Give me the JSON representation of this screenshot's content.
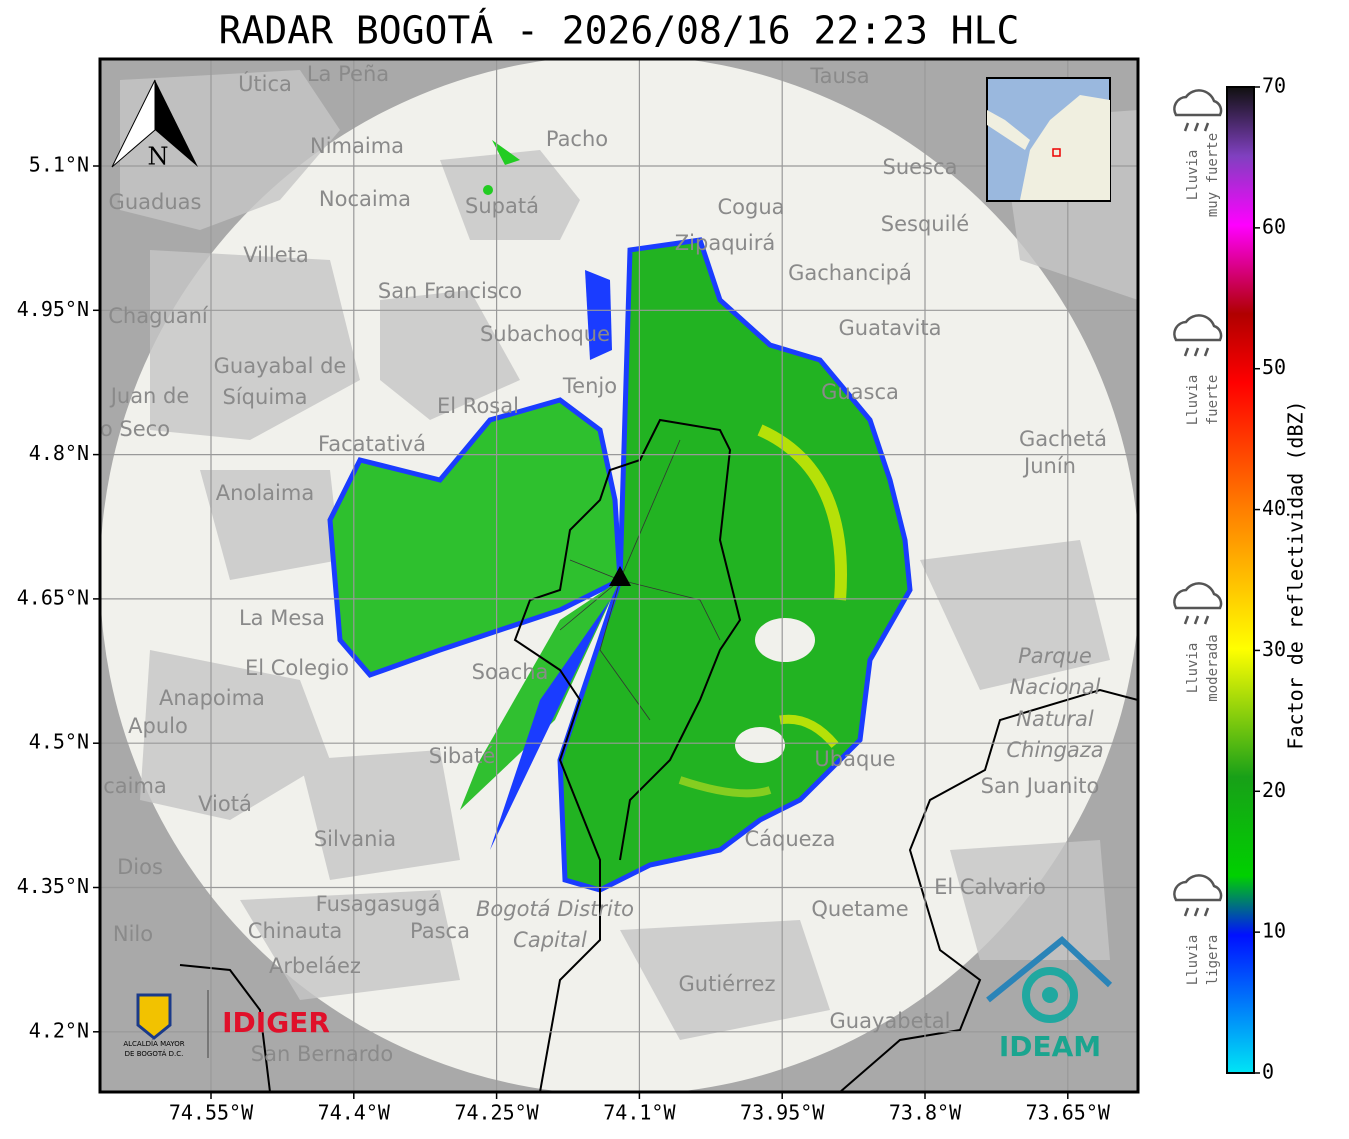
{
  "title": "RADAR BOGOTÁ - 2026/08/16 22:23 HLC",
  "map": {
    "lat_labels": [
      "5.1°N",
      "4.95°N",
      "4.8°N",
      "4.65°N",
      "4.5°N",
      "4.35°N",
      "4.2°N"
    ],
    "lon_labels": [
      "74.55°W",
      "74.4°W",
      "74.25°W",
      "74.1°W",
      "73.95°W",
      "73.8°W",
      "73.65°W"
    ],
    "north": "N",
    "places": [
      "La Peña",
      "Útica",
      "Tausa",
      "Pacho",
      "Nimaima",
      "Supatá",
      "Nocaima",
      "Guaduas",
      "Cogua",
      "Suesca",
      "Sesquilé",
      "Zipaquirá",
      "Villeta",
      "Gachancipá",
      "San Francisco",
      "Chaguaní",
      "Guatavita",
      "Subachoque",
      "Guayabal de",
      "Síquima",
      "Tenjo",
      "Guasca",
      "Juan de",
      "o Seco",
      "El Rosal",
      "Facatativá",
      "Gachetá",
      "Junín",
      "Anolaima",
      "La Mesa",
      "El Colegio",
      "Soacha",
      "Parque",
      "Nacional",
      "Natural",
      "Chingaza",
      "Anapoima",
      "Apulo",
      "Sibaté",
      "Ubaque",
      "San Juanito",
      "caima",
      "Viotá",
      "Silvania",
      "Cáqueza",
      "Dios",
      "El Calvario",
      "Fusagasugá",
      "Bogotá Distrito",
      "Capital",
      "Quetame",
      "Nilo",
      "Chinauta",
      "Pasca",
      "Arbeláez",
      "Gutiérrez",
      "Guayabetal",
      "San Bernardo"
    ]
  },
  "colorbar": {
    "label": "Factor de reflectividad (dBZ)",
    "ticks": [
      0,
      10,
      20,
      30,
      40,
      50,
      60,
      70
    ]
  },
  "legend": [
    {
      "lines": [
        "Lluvia",
        "muy fuerte"
      ]
    },
    {
      "lines": [
        "Lluvia",
        "fuerte"
      ]
    },
    {
      "lines": [
        "Lluvia",
        "moderada"
      ]
    },
    {
      "lines": [
        "Lluvia",
        "ligera"
      ]
    }
  ],
  "logos": {
    "alcaldia": [
      "ALCALDÍA MAYOR",
      "DE BOGOTÁ D.C."
    ],
    "idiger": "IDIGER",
    "ideam": "IDEAM"
  }
}
